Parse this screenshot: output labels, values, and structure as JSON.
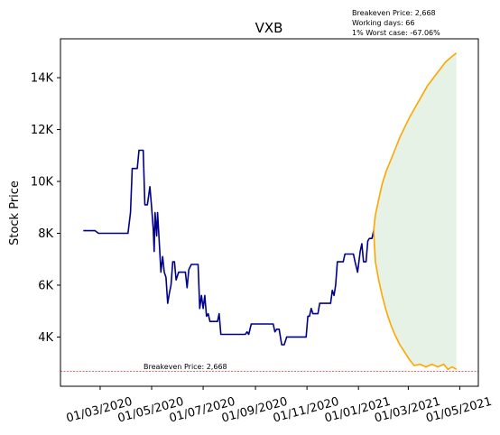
{
  "chart_data": {
    "type": "line",
    "title": "VXB",
    "ylabel": "Stock Price",
    "xlabel": "",
    "annotations": {
      "stats": [
        "Breakeven Price: 2,668",
        "Working days: 66",
        "1% Worst case: -67.06%"
      ],
      "breakeven_label": "Breakeven Price: 2,668"
    },
    "breakeven_price": 2668,
    "ylim": [
      2100,
      15500
    ],
    "xlim": [
      "2020-01-14",
      "2021-05-23"
    ],
    "x_ticks": [
      {
        "date": "2020-03-01",
        "label": "01/03/2020"
      },
      {
        "date": "2020-05-01",
        "label": "01/05/2020"
      },
      {
        "date": "2020-07-01",
        "label": "01/07/2020"
      },
      {
        "date": "2020-09-01",
        "label": "01/09/2020"
      },
      {
        "date": "2020-11-01",
        "label": "01/11/2020"
      },
      {
        "date": "2021-01-01",
        "label": "01/01/2021"
      },
      {
        "date": "2021-03-01",
        "label": "01/03/2021"
      },
      {
        "date": "2021-05-01",
        "label": "01/05/2021"
      }
    ],
    "y_ticks": [
      {
        "value": 4000,
        "label": "4K"
      },
      {
        "value": 6000,
        "label": "6K"
      },
      {
        "value": 8000,
        "label": "8K"
      },
      {
        "value": 10000,
        "label": "10K"
      },
      {
        "value": 12000,
        "label": "12K"
      },
      {
        "value": 14000,
        "label": "14K"
      }
    ],
    "grid": false,
    "colors": {
      "price": "#00008b",
      "bounds": "#ffa500",
      "fill": "#e5f2e5",
      "breakeven": "#ff0000"
    },
    "series": [
      {
        "name": "price",
        "points": [
          [
            "2020-02-10",
            8100
          ],
          [
            "2020-02-24",
            8100
          ],
          [
            "2020-02-28",
            8000
          ],
          [
            "2020-04-03",
            8000
          ],
          [
            "2020-04-06",
            8800
          ],
          [
            "2020-04-08",
            10500
          ],
          [
            "2020-04-14",
            10500
          ],
          [
            "2020-04-16",
            11200
          ],
          [
            "2020-04-21",
            11200
          ],
          [
            "2020-04-23",
            9100
          ],
          [
            "2020-04-26",
            9100
          ],
          [
            "2020-04-29",
            9800
          ],
          [
            "2020-05-01",
            9000
          ],
          [
            "2020-05-03",
            8100
          ],
          [
            "2020-05-04",
            7300
          ],
          [
            "2020-05-05",
            8800
          ],
          [
            "2020-05-07",
            7900
          ],
          [
            "2020-05-08",
            8800
          ],
          [
            "2020-05-10",
            7700
          ],
          [
            "2020-05-12",
            6500
          ],
          [
            "2020-05-14",
            7100
          ],
          [
            "2020-05-16",
            6500
          ],
          [
            "2020-05-18",
            6300
          ],
          [
            "2020-05-20",
            5300
          ],
          [
            "2020-05-22",
            5700
          ],
          [
            "2020-05-24",
            6000
          ],
          [
            "2020-05-26",
            6900
          ],
          [
            "2020-05-28",
            6900
          ],
          [
            "2020-05-30",
            6200
          ],
          [
            "2020-06-02",
            6500
          ],
          [
            "2020-06-10",
            6500
          ],
          [
            "2020-06-12",
            5900
          ],
          [
            "2020-06-14",
            6600
          ],
          [
            "2020-06-17",
            6800
          ],
          [
            "2020-06-25",
            6800
          ],
          [
            "2020-06-27",
            5100
          ],
          [
            "2020-06-29",
            5600
          ],
          [
            "2020-07-01",
            5100
          ],
          [
            "2020-07-03",
            5600
          ],
          [
            "2020-07-05",
            4800
          ],
          [
            "2020-07-07",
            4900
          ],
          [
            "2020-07-09",
            4600
          ],
          [
            "2020-07-18",
            4600
          ],
          [
            "2020-07-20",
            4900
          ],
          [
            "2020-07-22",
            4100
          ],
          [
            "2020-08-20",
            4100
          ],
          [
            "2020-08-22",
            4200
          ],
          [
            "2020-08-24",
            4100
          ],
          [
            "2020-08-27",
            4500
          ],
          [
            "2020-09-22",
            4500
          ],
          [
            "2020-09-24",
            4200
          ],
          [
            "2020-09-26",
            4300
          ],
          [
            "2020-09-29",
            4300
          ],
          [
            "2020-10-02",
            3700
          ],
          [
            "2020-10-05",
            3700
          ],
          [
            "2020-10-08",
            4000
          ],
          [
            "2020-10-31",
            4000
          ],
          [
            "2020-11-02",
            4800
          ],
          [
            "2020-11-04",
            4800
          ],
          [
            "2020-11-06",
            5100
          ],
          [
            "2020-11-08",
            4900
          ],
          [
            "2020-11-14",
            4900
          ],
          [
            "2020-11-16",
            5300
          ],
          [
            "2020-11-29",
            5300
          ],
          [
            "2020-12-01",
            5800
          ],
          [
            "2020-12-03",
            5600
          ],
          [
            "2020-12-05",
            6000
          ],
          [
            "2020-12-07",
            6900
          ],
          [
            "2020-12-14",
            6900
          ],
          [
            "2020-12-16",
            7200
          ],
          [
            "2020-12-26",
            7200
          ],
          [
            "2020-12-28",
            6900
          ],
          [
            "2020-12-31",
            6500
          ],
          [
            "2021-01-03",
            7300
          ],
          [
            "2021-01-05",
            7600
          ],
          [
            "2021-01-07",
            6900
          ],
          [
            "2021-01-10",
            6900
          ],
          [
            "2021-01-12",
            7700
          ],
          [
            "2021-01-14",
            7800
          ],
          [
            "2021-01-17",
            7800
          ],
          [
            "2021-01-19",
            8100
          ]
        ]
      },
      {
        "name": "upper",
        "points": [
          [
            "2021-01-19",
            8100
          ],
          [
            "2021-01-21",
            8700
          ],
          [
            "2021-01-25",
            9300
          ],
          [
            "2021-01-29",
            9900
          ],
          [
            "2021-02-03",
            10400
          ],
          [
            "2021-02-08",
            10800
          ],
          [
            "2021-02-13",
            11200
          ],
          [
            "2021-02-19",
            11700
          ],
          [
            "2021-02-25",
            12100
          ],
          [
            "2021-03-03",
            12500
          ],
          [
            "2021-03-10",
            12900
          ],
          [
            "2021-03-17",
            13300
          ],
          [
            "2021-03-24",
            13700
          ],
          [
            "2021-03-31",
            14000
          ],
          [
            "2021-04-07",
            14300
          ],
          [
            "2021-04-14",
            14600
          ],
          [
            "2021-04-21",
            14800
          ],
          [
            "2021-04-27",
            14950
          ]
        ]
      },
      {
        "name": "lower",
        "points": [
          [
            "2021-01-19",
            8100
          ],
          [
            "2021-01-21",
            6900
          ],
          [
            "2021-01-25",
            6200
          ],
          [
            "2021-01-29",
            5600
          ],
          [
            "2021-02-03",
            5000
          ],
          [
            "2021-02-08",
            4500
          ],
          [
            "2021-02-13",
            4100
          ],
          [
            "2021-02-19",
            3700
          ],
          [
            "2021-02-25",
            3400
          ],
          [
            "2021-03-03",
            3100
          ],
          [
            "2021-03-08",
            2900
          ],
          [
            "2021-03-15",
            2950
          ],
          [
            "2021-03-22",
            2850
          ],
          [
            "2021-03-29",
            2950
          ],
          [
            "2021-04-05",
            2850
          ],
          [
            "2021-04-12",
            2950
          ],
          [
            "2021-04-17",
            2750
          ],
          [
            "2021-04-22",
            2850
          ],
          [
            "2021-04-27",
            2750
          ]
        ]
      }
    ]
  }
}
